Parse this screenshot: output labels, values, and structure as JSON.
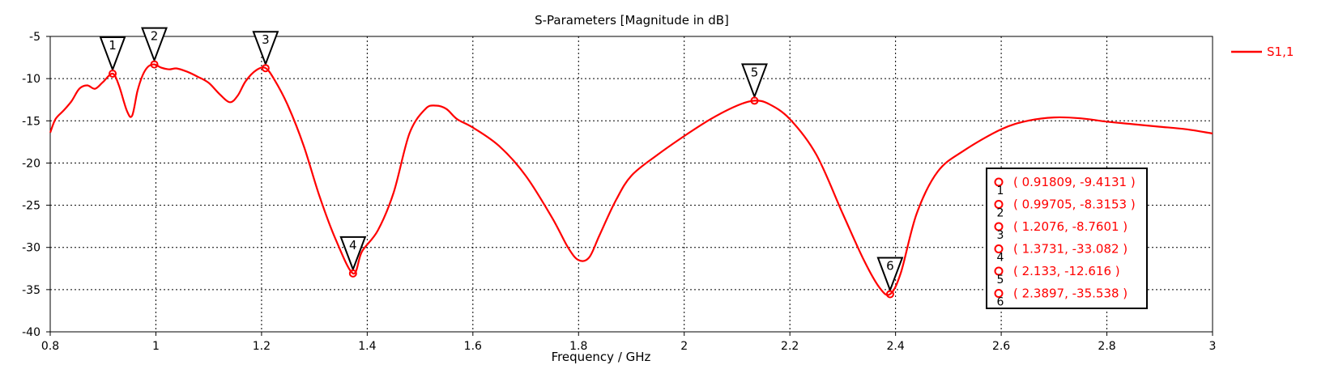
{
  "chart_data": {
    "type": "line",
    "title": "S-Parameters [Magnitude in dB]",
    "xlabel": "Frequency / GHz",
    "ylabel": "",
    "xlim": [
      0.8,
      3
    ],
    "ylim": [
      -40,
      -5
    ],
    "xticks": [
      "0.8",
      "1",
      "1.2",
      "1.4",
      "1.6",
      "1.8",
      "2",
      "2.2",
      "2.4",
      "2.6",
      "2.8",
      "3"
    ],
    "yticks": [
      "-5",
      "-10",
      "-15",
      "-20",
      "-25",
      "-30",
      "-35",
      "-40"
    ],
    "grid": true,
    "legend_position": "top-right",
    "series": [
      {
        "name": "S1,1",
        "color": "#ff0000",
        "x": [
          0.8,
          0.81,
          0.825,
          0.84,
          0.855,
          0.87,
          0.885,
          0.9,
          0.91809,
          0.93,
          0.945,
          0.955,
          0.965,
          0.975,
          0.985,
          0.99705,
          1.01,
          1.025,
          1.04,
          1.06,
          1.08,
          1.1,
          1.12,
          1.14,
          1.155,
          1.17,
          1.19,
          1.2076,
          1.225,
          1.25,
          1.28,
          1.31,
          1.34,
          1.3731,
          1.39,
          1.42,
          1.45,
          1.48,
          1.51,
          1.53,
          1.55,
          1.57,
          1.6,
          1.65,
          1.7,
          1.75,
          1.78,
          1.8,
          1.82,
          1.84,
          1.87,
          1.9,
          1.95,
          2.0,
          2.05,
          2.1,
          2.133,
          2.16,
          2.2,
          2.25,
          2.3,
          2.34,
          2.37,
          2.3897,
          2.41,
          2.44,
          2.48,
          2.53,
          2.6,
          2.65,
          2.7,
          2.75,
          2.8,
          2.85,
          2.9,
          2.95,
          3.0
        ],
        "values": [
          -16.4,
          -14.8,
          -13.8,
          -12.7,
          -11.2,
          -10.8,
          -11.2,
          -10.4,
          -9.4131,
          -10.8,
          -13.8,
          -14.4,
          -11.5,
          -9.6,
          -8.6,
          -8.3153,
          -8.7,
          -8.9,
          -8.8,
          -9.2,
          -9.8,
          -10.5,
          -11.8,
          -12.8,
          -12.0,
          -10.3,
          -9.0,
          -8.7601,
          -10.2,
          -13.2,
          -18.0,
          -24.0,
          -29.0,
          -33.082,
          -30.5,
          -28.0,
          -23.5,
          -16.5,
          -13.6,
          -13.2,
          -13.6,
          -14.8,
          -15.8,
          -18.0,
          -21.5,
          -26.5,
          -30.0,
          -31.5,
          -31.2,
          -28.5,
          -24.5,
          -21.5,
          -19.0,
          -16.8,
          -14.8,
          -13.2,
          -12.616,
          -13.0,
          -14.8,
          -19.0,
          -26.0,
          -31.5,
          -34.8,
          -35.538,
          -33.0,
          -26.0,
          -21.0,
          -18.5,
          -16.0,
          -15.0,
          -14.6,
          -14.7,
          -15.1,
          -15.4,
          -15.7,
          -16.0,
          -16.5
        ]
      }
    ],
    "markers": [
      {
        "id": "1",
        "x": 0.91809,
        "y": -9.4131,
        "label": "( 0.91809, -9.4131 )"
      },
      {
        "id": "2",
        "x": 0.99705,
        "y": -8.3153,
        "label": "( 0.99705, -8.3153 )"
      },
      {
        "id": "3",
        "x": 1.2076,
        "y": -8.7601,
        "label": "( 1.2076, -8.7601 )"
      },
      {
        "id": "4",
        "x": 1.3731,
        "y": -33.082,
        "label": "( 1.3731, -33.082 )"
      },
      {
        "id": "5",
        "x": 2.133,
        "y": -12.616,
        "label": "( 2.133, -12.616 )"
      },
      {
        "id": "6",
        "x": 2.3897,
        "y": -35.538,
        "label": "( 2.3897, -35.538 )"
      }
    ]
  }
}
